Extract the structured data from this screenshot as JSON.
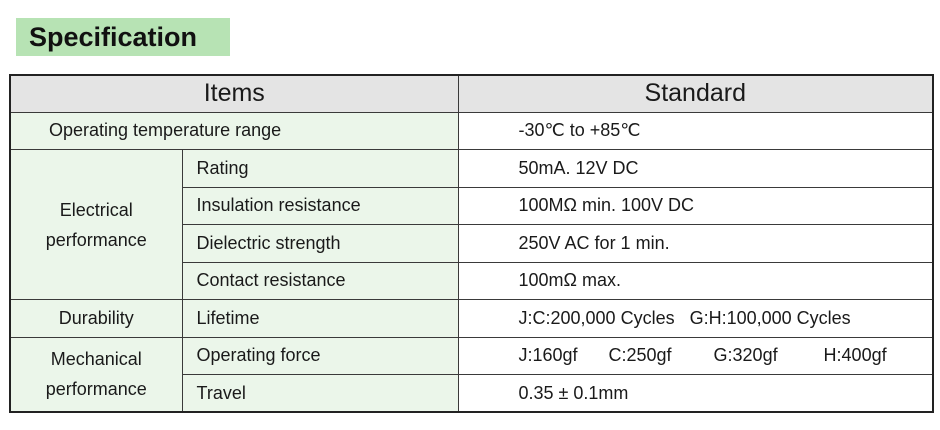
{
  "title": "Specification",
  "table": {
    "header_items": "Items",
    "header_standard": "Standard",
    "operating_temp": {
      "label": "Operating temperature range",
      "value": "-30℃ to +85℃"
    },
    "electrical": {
      "group": "Electrical performance",
      "group_line1": "Electrical",
      "group_line2": "performance",
      "rows": [
        {
          "label": "Rating",
          "value": "50mA. 12V DC"
        },
        {
          "label": "Insulation resistance",
          "value": "100MΩ min. 100V DC"
        },
        {
          "label": "Dielectric strength",
          "value": "250V AC for 1 min."
        },
        {
          "label": "Contact resistance",
          "value": "100mΩ max."
        }
      ]
    },
    "durability": {
      "group": "Durability",
      "label": "Lifetime",
      "value_jc": "J:C:200,000 Cycles",
      "value_gh": "G:H:100,000 Cycles"
    },
    "mechanical": {
      "group_line1": "Mechanical",
      "group_line2": "performance",
      "force_label": "Operating force",
      "force_j": "J:160gf",
      "force_c": "C:250gf",
      "force_g": "G:320gf",
      "force_h": "H:400gf",
      "travel_label": "Travel",
      "travel_value": "0.35 ± 0.1mm"
    }
  }
}
